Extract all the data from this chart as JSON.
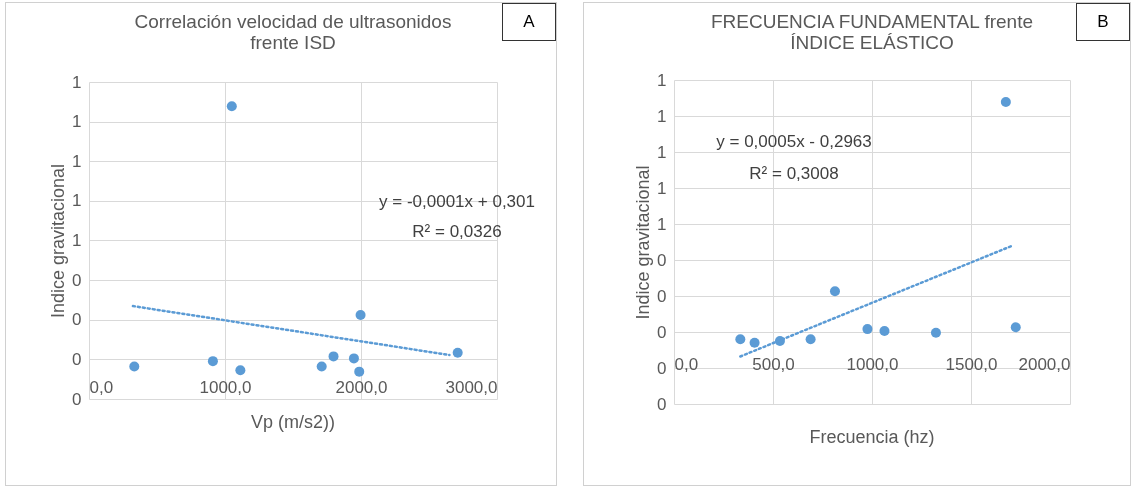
{
  "chart_data": [
    {
      "type": "scatter",
      "title": "Correlación velocidad de ultrasonidos frente ISD",
      "xlabel": "Vp (m/s2))",
      "ylabel": "Indice gravitacional",
      "xlim": [
        0,
        3000
      ],
      "xticks": [
        {
          "value": 0,
          "label": "0,0"
        },
        {
          "value": 1000,
          "label": "1000,0"
        },
        {
          "value": 2000,
          "label": "2000,0"
        },
        {
          "value": 3000,
          "label": "3000,0"
        }
      ],
      "ylim": [
        -0.2,
        1.4
      ],
      "yticks": [
        {
          "value": -0.2,
          "label": "0"
        },
        {
          "value": 0,
          "label": "0"
        },
        {
          "value": 0.2,
          "label": "0"
        },
        {
          "value": 0.4,
          "label": "0"
        },
        {
          "value": 0.6,
          "label": "1"
        },
        {
          "value": 0.8,
          "label": "1"
        },
        {
          "value": 1.0,
          "label": "1"
        },
        {
          "value": 1.2,
          "label": "1"
        },
        {
          "value": 1.4,
          "label": "1"
        }
      ],
      "grid": true,
      "series": [
        {
          "marker": "circle",
          "color": "#5b9bd5",
          "x": [
            333,
            911,
            1050,
            1113,
            1711,
            1798,
            1948,
            1997,
            1987,
            2711
          ],
          "values": [
            -0.036,
            -0.009,
            1.278,
            -0.055,
            -0.036,
            0.015,
            0.005,
            0.224,
            -0.062,
            0.033
          ]
        },
        {
          "type": "line",
          "marker": "none",
          "line_style": "dotted",
          "color": "#5b9bd5",
          "x": [
            323,
            2650
          ],
          "values": [
            0.269,
            0.022
          ]
        }
      ],
      "annotations": [
        "A",
        "y = -0,0001x + 0,301",
        "R² = 0,0326"
      ]
    },
    {
      "type": "scatter",
      "title": "FRECUENCIA FUNDAMENTAL frente ÍNDICE ELÁSTICO",
      "xlabel": "Frecuencia (hz)",
      "ylabel": "Indice gravitacional",
      "xlim": [
        0,
        2000
      ],
      "xticks": [
        {
          "value": 0,
          "label": "0,0"
        },
        {
          "value": 500,
          "label": "500,0"
        },
        {
          "value": 1000,
          "label": "1000,0"
        },
        {
          "value": 1500,
          "label": "1500,0"
        },
        {
          "value": 2000,
          "label": "2000,0"
        }
      ],
      "ylim": [
        -0.4,
        1.4
      ],
      "yticks": [
        {
          "value": -0.4,
          "label": "0"
        },
        {
          "value": -0.2,
          "label": "0"
        },
        {
          "value": 0,
          "label": "0"
        },
        {
          "value": 0.2,
          "label": "0"
        },
        {
          "value": 0.4,
          "label": "0"
        },
        {
          "value": 0.6,
          "label": "1"
        },
        {
          "value": 0.8,
          "label": "1"
        },
        {
          "value": 1.0,
          "label": "1"
        },
        {
          "value": 1.2,
          "label": "1"
        },
        {
          "value": 1.4,
          "label": "1"
        }
      ],
      "grid": true,
      "series": [
        {
          "marker": "circle",
          "color": "#5b9bd5",
          "x": [
            335,
            407,
            535,
            690,
            813,
            977,
            1063,
            1323,
            1676,
            1726
          ],
          "values": [
            -0.04,
            -0.06,
            -0.05,
            -0.04,
            0.226,
            0.016,
            0.006,
            -0.004,
            1.278,
            0.026
          ]
        },
        {
          "type": "line",
          "marker": "none",
          "line_style": "dotted",
          "color": "#5b9bd5",
          "x": [
            335,
            1701
          ],
          "values": [
            -0.136,
            0.476
          ]
        }
      ],
      "annotations": [
        "B",
        "y = 0,0005x - 0,2963",
        "R² = 0,3008"
      ]
    }
  ]
}
